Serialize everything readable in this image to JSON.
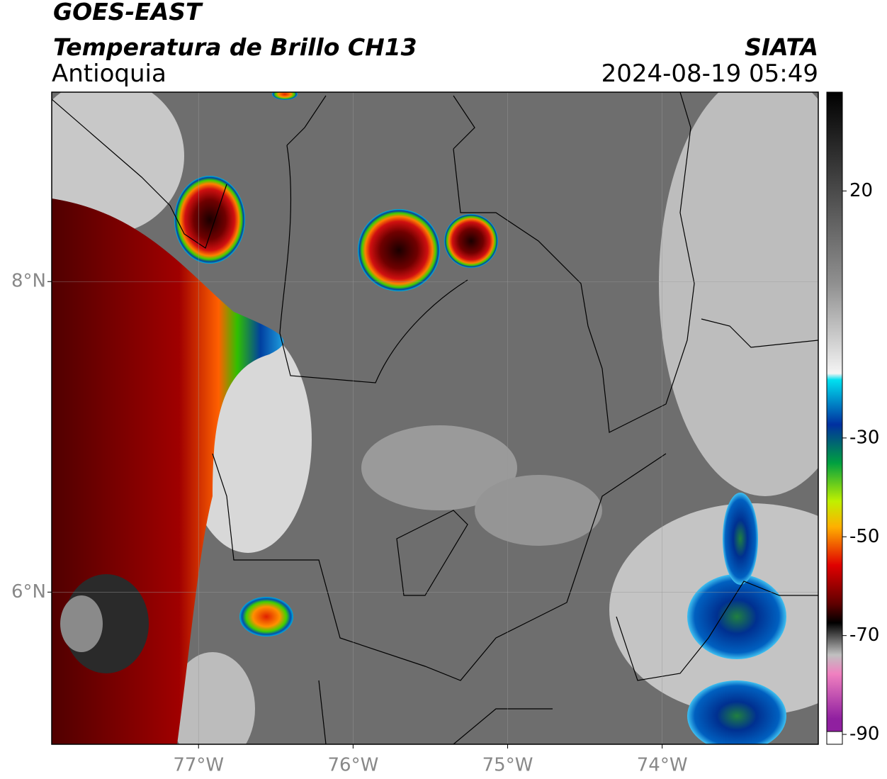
{
  "header": {
    "title": "GOES-EAST",
    "subtitle": "Temperatura de Brillo CH13",
    "region": "Antioquia",
    "source": "SIATA",
    "datetime": "2024-08-19 05:49"
  },
  "map": {
    "xlim": [
      -77.95,
      -72.99
    ],
    "ylim": [
      5.02,
      9.22
    ],
    "xticks": [
      {
        "value": -77,
        "label": "77°W"
      },
      {
        "value": -76,
        "label": "76°W"
      },
      {
        "value": -75,
        "label": "75°W"
      },
      {
        "value": -74,
        "label": "74°W"
      }
    ],
    "yticks": [
      {
        "value": 6,
        "label": "6°N"
      },
      {
        "value": 8,
        "label": "8°N"
      }
    ]
  },
  "colorbar": {
    "lim": [
      -92,
      40
    ],
    "ticks": [
      20,
      -30,
      -50,
      -70,
      -90
    ]
  }
}
